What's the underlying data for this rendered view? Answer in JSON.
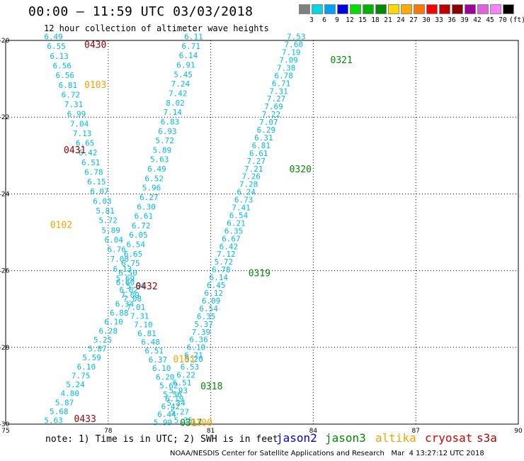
{
  "title": "00:00 – 11:59 UTC 03/03/2018",
  "subtitle": "12 hour collection of altimeter wave heights",
  "legend": {
    "colors": [
      "#808080",
      "#00d8e8",
      "#00a0ff",
      "#0000e0",
      "#00e000",
      "#00b400",
      "#008a00",
      "#ffd800",
      "#ffaa00",
      "#ff7800",
      "#ff0000",
      "#c00000",
      "#8c0000",
      "#a000a0",
      "#e060e0",
      "#ff80ff",
      "#000000"
    ],
    "labels": [
      "3",
      "6",
      "9",
      "12",
      "15",
      "18",
      "21",
      "24",
      "27",
      "30",
      "33",
      "36",
      "39",
      "42",
      "45",
      "70",
      "(ft)"
    ]
  },
  "note": "note: 1) Time is in UTC; 2) SWH is in feet",
  "satellites": [
    {
      "name": "jason2",
      "color": "#0000e0"
    },
    {
      "name": "jason3",
      "color": "#008a00"
    },
    {
      "name": "altika",
      "color": "#ffa000"
    },
    {
      "name": "cryosat",
      "color": "#e00000"
    },
    {
      "name": "s3a",
      "color": "#c00000"
    }
  ],
  "footer": "NOAA/NESDIS Center for Satellite Applications and Research   Mar  4 13:27:12 UTC 2018",
  "axes": {
    "x_labels": [
      "75",
      "78",
      "81",
      "84",
      "87",
      "90"
    ],
    "y_labels": [
      "-20",
      "-22",
      "-24",
      "-26",
      "-28",
      "-30"
    ]
  },
  "colors": {
    "swh": "#00bce6",
    "altika": "#ffa000",
    "jason3": "#008a00",
    "s3a": "#990000"
  },
  "time_labels": [
    {
      "text": "0430",
      "sat": "s3a",
      "lon": 77.3,
      "lat": -20.1
    },
    {
      "text": "0321",
      "sat": "jason3",
      "lon": 84.5,
      "lat": -20.5
    },
    {
      "text": "0103",
      "sat": "altika",
      "lon": 77.3,
      "lat": -21.15
    },
    {
      "text": "0431",
      "sat": "s3a",
      "lon": 76.7,
      "lat": -22.85
    },
    {
      "text": "0320",
      "sat": "jason3",
      "lon": 83.3,
      "lat": -23.35
    },
    {
      "text": "0102",
      "sat": "altika",
      "lon": 76.3,
      "lat": -24.8
    },
    {
      "text": "0319",
      "sat": "jason3",
      "lon": 82.1,
      "lat": -26.05
    },
    {
      "text": "0432",
      "sat": "s3a",
      "lon": 78.8,
      "lat": -26.4
    },
    {
      "text": "0101",
      "sat": "altika",
      "lon": 79.9,
      "lat": -28.3
    },
    {
      "text": "0318",
      "sat": "jason3",
      "lon": 80.7,
      "lat": -29.0
    },
    {
      "text": "0433",
      "sat": "s3a",
      "lon": 77.0,
      "lat": -29.85
    },
    {
      "text": "0317",
      "sat": "jason3",
      "lon": 80.1,
      "lat": -29.95
    },
    {
      "text": "0100",
      "sat": "altika",
      "lon": 80.4,
      "lat": -29.95
    }
  ],
  "tracks": [
    {
      "name": "s3a-left",
      "lon1": 76.4,
      "lat1": -19.9,
      "lon2": 78.5,
      "lat2": -26.2,
      "values": [
        "6.49",
        "6.55",
        "6.13",
        "6.56",
        "6.56",
        "6.81",
        "6.72",
        "7.31",
        "6.99",
        "7.04",
        "7.13",
        "6.65",
        "6.42",
        "6.51",
        "6.78",
        "6.15",
        "6.07",
        "6.03",
        "5.81",
        "5.72",
        "5.89",
        "6.04",
        "6.76",
        "7.08",
        "6.13",
        "5.69"
      ]
    },
    {
      "name": "s3a-left-lower",
      "lon1": 78.8,
      "lat1": -26.4,
      "lon2": 76.4,
      "lat2": -29.9,
      "values": [
        "5.64",
        "7.09",
        "6.34",
        "6.88",
        "6.10",
        "6.28",
        "5.25",
        "5.87",
        "5.59",
        "6.10",
        "7.75",
        "5.24",
        "4.80",
        "5.87",
        "5.68",
        "5.63"
      ]
    },
    {
      "name": "altika-upper",
      "lon1": 80.5,
      "lat1": -19.9,
      "lon2": 78.5,
      "lat2": -26.3,
      "values": [
        "6.11",
        "6.71",
        "6.14",
        "6.91",
        "5.45",
        "7.24",
        "7.42",
        "8.02",
        "7.14",
        "6.83",
        "6.93",
        "5.72",
        "5.89",
        "5.63",
        "6.49",
        "6.52",
        "5.96",
        "6.27",
        "6.30",
        "6.61",
        "6.72",
        "6.05",
        "6.54",
        "6.65",
        "6.75",
        "6.50",
        "6.60"
      ]
    },
    {
      "name": "altika-lower",
      "lon1": 78.6,
      "lat1": -26.5,
      "lon2": 80.2,
      "lat2": -29.9,
      "values": [
        "6.62",
        "7.08",
        "7.01",
        "7.31",
        "7.10",
        "6.81",
        "6.48",
        "6.51",
        "6.37",
        "6.10",
        "6.20",
        "5.62",
        "5.56",
        "5.34",
        "5.27",
        "5.35"
      ]
    },
    {
      "name": "jason3",
      "lon1": 83.5,
      "lat1": -19.9,
      "lon2": 80.5,
      "lat2": -28.2,
      "values": [
        "7.53",
        "7.60",
        "7.19",
        "7.09",
        "7.38",
        "6.78",
        "6.71",
        "7.31",
        "7.27",
        "7.69",
        "7.22",
        "7.07",
        "6.29",
        "6.31",
        "6.81",
        "6.61",
        "7.27",
        "7.21",
        "7.26",
        "7.28",
        "6.24",
        "6.73",
        "7.41",
        "6.54",
        "6.21",
        "6.35",
        "6.67",
        "6.42",
        "7.12",
        "5.72",
        "6.78",
        "6.14",
        "6.45",
        "6.12",
        "6.09",
        "6.54",
        "6.35",
        "5.37",
        "7.39",
        "6.36",
        "6.10",
        "6.21"
      ]
    },
    {
      "name": "jason3-lower",
      "lon1": 80.5,
      "lat1": -28.3,
      "lon2": 79.6,
      "lat2": -29.95,
      "values": [
        "6.20",
        "6.53",
        "6.22",
        "6.51",
        "5.93",
        "6.19",
        "6.42",
        "6.44",
        "5.99"
      ]
    }
  ]
}
